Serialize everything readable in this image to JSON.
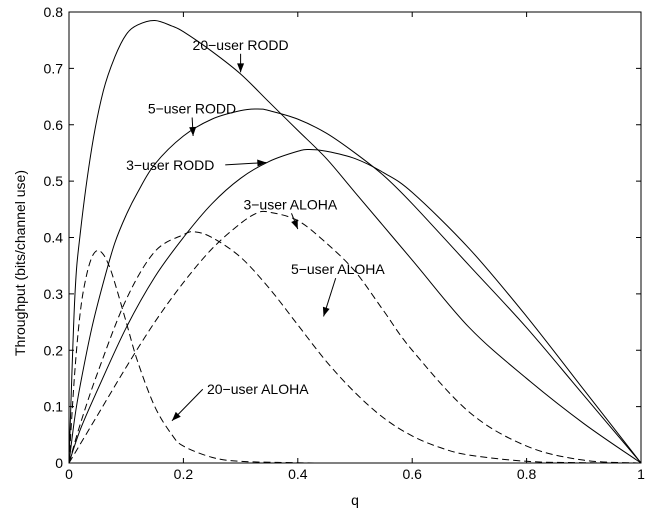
{
  "chart_data": {
    "type": "line",
    "title": "",
    "xlabel": "q",
    "ylabel": "Throughput (bits/channel use)",
    "xlim": [
      0,
      1
    ],
    "ylim": [
      0,
      0.8
    ],
    "xticks": [
      0,
      0.2,
      0.4,
      0.6,
      0.8,
      1
    ],
    "yticks": [
      0,
      0.1,
      0.2,
      0.3,
      0.4,
      0.5,
      0.6,
      0.7,
      0.8
    ],
    "xtick_labels": [
      "0",
      "0.2",
      "0.4",
      "0.6",
      "0.8",
      "1"
    ],
    "ytick_labels": [
      "0",
      "0.1",
      "0.2",
      "0.3",
      "0.4",
      "0.5",
      "0.6",
      "0.7",
      "0.8"
    ],
    "grid": false,
    "series": [
      {
        "style": "solid",
        "x": [
          0,
          0.01,
          0.02,
          0.04,
          0.06,
          0.08,
          0.1,
          0.12,
          0.15,
          0.18,
          0.2,
          0.25,
          0.3,
          0.35,
          0.4,
          0.45,
          0.5,
          0.6,
          0.7,
          0.8,
          0.9,
          1.0
        ],
        "y": [
          0,
          0.29,
          0.41,
          0.56,
          0.66,
          0.72,
          0.76,
          0.777,
          0.785,
          0.775,
          0.765,
          0.73,
          0.69,
          0.64,
          0.59,
          0.54,
          0.48,
          0.36,
          0.24,
          0.15,
          0.07,
          0
        ]
      },
      {
        "style": "solid",
        "x": [
          0,
          0.01,
          0.02,
          0.04,
          0.06,
          0.08,
          0.1,
          0.12,
          0.15,
          0.2,
          0.25,
          0.3,
          0.33,
          0.35,
          0.4,
          0.45,
          0.5,
          0.55,
          0.6,
          0.7,
          0.8,
          0.9,
          1.0
        ],
        "y": [
          0,
          0.08,
          0.14,
          0.24,
          0.32,
          0.39,
          0.44,
          0.48,
          0.53,
          0.58,
          0.61,
          0.625,
          0.628,
          0.625,
          0.61,
          0.585,
          0.55,
          0.51,
          0.46,
          0.35,
          0.24,
          0.12,
          0
        ]
      },
      {
        "style": "solid",
        "x": [
          0,
          0.02,
          0.05,
          0.1,
          0.15,
          0.2,
          0.25,
          0.3,
          0.35,
          0.4,
          0.42,
          0.45,
          0.5,
          0.55,
          0.6,
          0.7,
          0.8,
          0.9,
          1.0
        ],
        "y": [
          0,
          0.06,
          0.13,
          0.24,
          0.33,
          0.4,
          0.46,
          0.505,
          0.535,
          0.553,
          0.556,
          0.553,
          0.54,
          0.515,
          0.48,
          0.38,
          0.26,
          0.13,
          0
        ]
      },
      {
        "style": "dashed",
        "x": [
          0,
          0.05,
          0.1,
          0.15,
          0.2,
          0.25,
          0.3,
          0.33,
          0.35,
          0.4,
          0.45,
          0.5,
          0.55,
          0.6,
          0.7,
          0.8,
          0.9,
          1.0
        ],
        "y": [
          0,
          0.085,
          0.17,
          0.25,
          0.32,
          0.38,
          0.425,
          0.444,
          0.445,
          0.43,
          0.39,
          0.34,
          0.27,
          0.2,
          0.09,
          0.03,
          0.005,
          0
        ]
      },
      {
        "style": "dashed",
        "x": [
          0,
          0.02,
          0.05,
          0.1,
          0.15,
          0.2,
          0.22,
          0.25,
          0.3,
          0.35,
          0.4,
          0.45,
          0.5,
          0.55,
          0.6,
          0.65,
          0.7,
          0.8,
          0.9,
          1.0
        ],
        "y": [
          0,
          0.07,
          0.16,
          0.29,
          0.375,
          0.405,
          0.41,
          0.4,
          0.365,
          0.31,
          0.245,
          0.18,
          0.125,
          0.08,
          0.048,
          0.027,
          0.014,
          0.003,
          0.0005,
          0
        ]
      },
      {
        "style": "dashed",
        "x": [
          0,
          0.01,
          0.02,
          0.03,
          0.04,
          0.05,
          0.06,
          0.07,
          0.08,
          0.1,
          0.12,
          0.15,
          0.18,
          0.2,
          0.25,
          0.3,
          0.4,
          0.5,
          1.0
        ],
        "y": [
          0,
          0.16,
          0.27,
          0.33,
          0.365,
          0.377,
          0.37,
          0.35,
          0.32,
          0.25,
          0.18,
          0.1,
          0.05,
          0.03,
          0.01,
          0.003,
          0.0005,
          0,
          0
        ]
      }
    ],
    "annotations": [
      {
        "text": "20−user RODD",
        "x": 0.3,
        "y": 0.733,
        "arrow_to": [
          0.3,
          0.693
        ]
      },
      {
        "text": "5−user RODD",
        "x": 0.215,
        "y": 0.62,
        "arrow_to": [
          0.217,
          0.58
        ]
      },
      {
        "text": "3−user RODD",
        "x": 0.177,
        "y": 0.52,
        "arrow_to": [
          0.345,
          0.533
        ]
      },
      {
        "text": "3−user ALOHA",
        "x": 0.387,
        "y": 0.45,
        "arrow_to": [
          0.4,
          0.415
        ]
      },
      {
        "text": "5−user ALOHA",
        "x": 0.47,
        "y": 0.335,
        "arrow_to": [
          0.445,
          0.26
        ]
      },
      {
        "text": "20−user ALOHA",
        "x": 0.33,
        "y": 0.122,
        "arrow_to": [
          0.18,
          0.075
        ]
      }
    ]
  }
}
